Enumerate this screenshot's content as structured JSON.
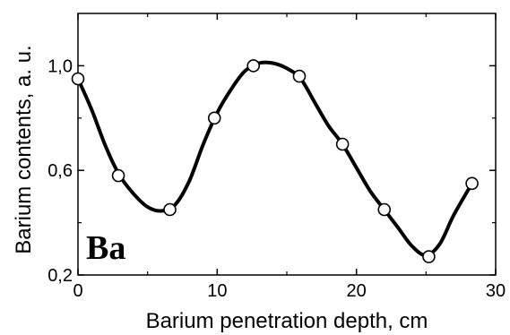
{
  "chart_data": {
    "type": "line",
    "title": "",
    "xlabel": "Barium penetration depth, cm",
    "ylabel": "Barium contents, a. u.",
    "annotation": "Ba",
    "xlim": [
      0,
      30
    ],
    "ylim": [
      0.2,
      1.2
    ],
    "x_ticks": [
      0,
      10,
      20,
      30
    ],
    "x_tick_labels": [
      "0",
      "10",
      "20",
      "30"
    ],
    "y_ticks": [
      0.2,
      0.6,
      1.0
    ],
    "y_tick_labels": [
      "0,2",
      "0,6",
      "1,0"
    ],
    "grid": false,
    "series": [
      {
        "x": [
          0,
          2.9,
          6.6,
          9.8,
          12.6,
          15.9,
          19.0,
          22.0,
          25.2,
          28.3
        ],
        "y": [
          0.95,
          0.58,
          0.45,
          0.8,
          1.0,
          0.96,
          0.7,
          0.45,
          0.27,
          0.55
        ]
      }
    ],
    "curve": {
      "x": [
        0,
        1,
        2,
        3,
        4,
        5,
        6,
        7,
        8,
        9,
        10,
        11,
        12,
        13,
        14,
        15,
        16,
        17,
        18,
        19,
        20,
        21,
        22,
        23,
        24,
        25,
        26,
        27,
        28.3
      ],
      "y": [
        0.95,
        0.83,
        0.69,
        0.58,
        0.51,
        0.46,
        0.445,
        0.47,
        0.56,
        0.7,
        0.82,
        0.91,
        0.98,
        1.01,
        1.01,
        0.99,
        0.95,
        0.86,
        0.77,
        0.7,
        0.61,
        0.52,
        0.45,
        0.38,
        0.31,
        0.275,
        0.32,
        0.43,
        0.55
      ]
    },
    "colors": {
      "line": "#000000",
      "marker_fill": "#ffffff",
      "marker_stroke": "#000000",
      "background": "#ffffff"
    }
  }
}
